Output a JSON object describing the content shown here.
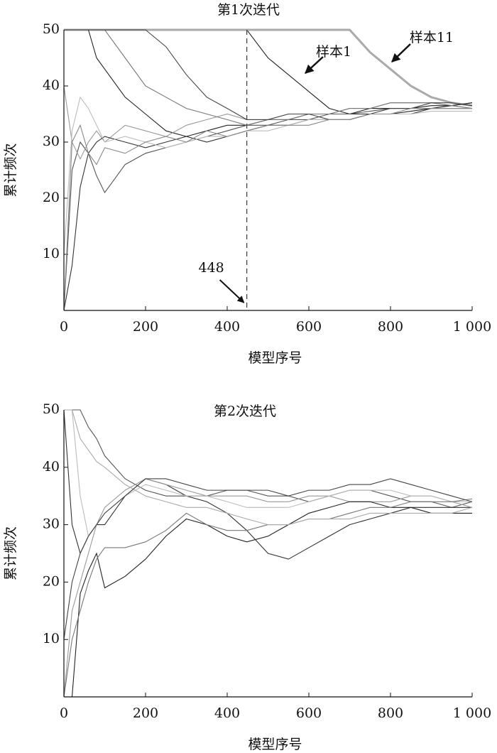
{
  "chart_data": [
    {
      "type": "line",
      "title": "第1次迭代",
      "xlabel": "模型序号",
      "ylabel": "累计频次",
      "xlim": [
        0,
        1000
      ],
      "ylim": [
        0,
        50
      ],
      "xticks": [
        0,
        200,
        400,
        600,
        800,
        {
          "value": 1000,
          "label": "1 000"
        }
      ],
      "yticks": [
        10,
        20,
        30,
        40,
        50
      ],
      "vline": 448,
      "annotations": [
        "样本1",
        "样本11"
      ],
      "x": [
        0,
        20,
        40,
        60,
        80,
        100,
        150,
        200,
        250,
        300,
        350,
        400,
        448,
        500,
        550,
        600,
        650,
        700,
        750,
        800,
        850,
        900,
        950,
        1000
      ],
      "series": [
        {
          "color": "#222222",
          "values": [
            50,
            50,
            50,
            50,
            50,
            50,
            50,
            50,
            50,
            50,
            50,
            50,
            50,
            45,
            42,
            39,
            36,
            35,
            35,
            35,
            35.5,
            36,
            36.5,
            37
          ]
        },
        {
          "color": "#aaaaaa",
          "width": 3,
          "values": [
            50,
            50,
            50,
            50,
            50,
            50,
            50,
            50,
            50,
            50,
            50,
            50,
            50,
            50,
            50,
            50,
            50,
            50,
            46,
            43,
            40,
            38,
            37,
            36.5
          ]
        },
        {
          "color": "#222222",
          "values": [
            50,
            50,
            50,
            50,
            45,
            43,
            38,
            35,
            32,
            31,
            32,
            33,
            33,
            34,
            34,
            35,
            35,
            35,
            36,
            36,
            36,
            36.5,
            36.5,
            37
          ]
        },
        {
          "color": "#555555",
          "values": [
            0,
            25,
            30,
            28,
            24,
            21,
            26,
            28,
            29,
            30,
            31,
            32,
            33,
            33,
            34,
            34,
            35,
            35,
            35.5,
            36,
            36,
            36,
            36,
            36
          ]
        },
        {
          "color": "#999999",
          "values": [
            40,
            30,
            27,
            30,
            32,
            30,
            33,
            32,
            31,
            33,
            34,
            35,
            34,
            34,
            35,
            35,
            35,
            36,
            36,
            37,
            37,
            37,
            36.5,
            36
          ]
        },
        {
          "color": "#333333",
          "values": [
            0,
            8,
            22,
            28,
            30,
            31,
            30,
            29,
            30,
            31,
            30,
            31,
            32,
            33,
            33,
            34,
            34,
            34,
            35,
            35,
            35,
            36,
            36,
            36
          ]
        },
        {
          "color": "#777777",
          "values": [
            50,
            50,
            50,
            50,
            50,
            50,
            45,
            40,
            38,
            36,
            35,
            34,
            33,
            34,
            34,
            35,
            35,
            36,
            36,
            37,
            37,
            37,
            36.5,
            36
          ]
        },
        {
          "color": "#bbbbbb",
          "values": [
            10,
            32,
            38,
            36,
            33,
            30,
            31,
            30,
            29,
            30,
            31,
            31,
            32,
            32,
            33,
            34,
            34,
            34,
            35,
            35,
            35,
            35.5,
            35.5,
            35.5
          ]
        },
        {
          "color": "#444444",
          "values": [
            50,
            50,
            50,
            50,
            50,
            50,
            50,
            50,
            47,
            42,
            38,
            36,
            34,
            34,
            35,
            35,
            34,
            34,
            35,
            36,
            36,
            37,
            37,
            36.5
          ]
        },
        {
          "color": "#888888",
          "values": [
            0,
            30,
            33,
            28,
            26,
            29,
            28,
            30,
            31,
            30,
            32,
            31,
            32,
            33,
            33,
            33,
            34,
            34,
            35,
            35,
            36,
            36,
            36,
            36
          ]
        }
      ]
    },
    {
      "type": "line",
      "title": "第2次迭代",
      "xlabel": "模型序号",
      "ylabel": "累计频次",
      "xlim": [
        0,
        1000
      ],
      "ylim": [
        0,
        50
      ],
      "xticks": [
        0,
        200,
        400,
        600,
        800,
        {
          "value": 1000,
          "label": "1 000"
        }
      ],
      "yticks": [
        10,
        20,
        30,
        40,
        50
      ],
      "x": [
        0,
        20,
        40,
        60,
        80,
        100,
        150,
        200,
        250,
        300,
        350,
        400,
        448,
        500,
        550,
        600,
        650,
        700,
        750,
        800,
        850,
        900,
        950,
        1000
      ],
      "series": [
        {
          "color": "#555555",
          "values": [
            50,
            50,
            50,
            47,
            45,
            42,
            38,
            36,
            35,
            35,
            35,
            36,
            36,
            35,
            35,
            34,
            35,
            36,
            36,
            35,
            34,
            34,
            33,
            34
          ]
        },
        {
          "color": "#333333",
          "values": [
            50,
            30,
            25,
            28,
            30,
            30,
            35,
            38,
            37,
            35,
            34,
            32,
            29,
            25,
            24,
            26,
            28,
            30,
            31,
            32,
            33,
            33,
            33,
            33
          ]
        },
        {
          "color": "#999999",
          "values": [
            0,
            15,
            20,
            25,
            30,
            33,
            36,
            38,
            37,
            36,
            35,
            35,
            35,
            34,
            34,
            35,
            35,
            34,
            34,
            34,
            35,
            35,
            34,
            33
          ]
        },
        {
          "color": "#222222",
          "values": [
            0,
            0,
            18,
            22,
            25,
            19,
            21,
            24,
            28,
            31,
            30,
            28,
            27,
            28,
            30,
            32,
            33,
            34,
            34,
            33,
            33,
            32,
            32,
            32
          ]
        },
        {
          "color": "#bbbbbb",
          "values": [
            50,
            50,
            35,
            28,
            30,
            32,
            35,
            37,
            36,
            35,
            35,
            34,
            33,
            33,
            33,
            34,
            35,
            36,
            36,
            36,
            35,
            35,
            34,
            34
          ]
        },
        {
          "color": "#777777",
          "values": [
            0,
            10,
            15,
            20,
            24,
            26,
            26,
            27,
            29,
            32,
            30,
            29,
            29,
            30,
            30,
            31,
            31,
            32,
            33,
            33,
            34,
            34,
            34,
            34.5
          ]
        },
        {
          "color": "#aaaaaa",
          "values": [
            50,
            50,
            45,
            43,
            41,
            40,
            37,
            35,
            34,
            33,
            33,
            32,
            31,
            30,
            30,
            31,
            31,
            31,
            32,
            32,
            32,
            32,
            32,
            33
          ]
        },
        {
          "color": "#444444",
          "values": [
            10,
            20,
            25,
            28,
            30,
            32,
            35,
            38,
            38,
            37,
            36,
            36,
            36,
            36,
            35,
            36,
            36,
            37,
            37,
            38,
            37,
            36,
            35,
            34
          ]
        }
      ]
    }
  ]
}
